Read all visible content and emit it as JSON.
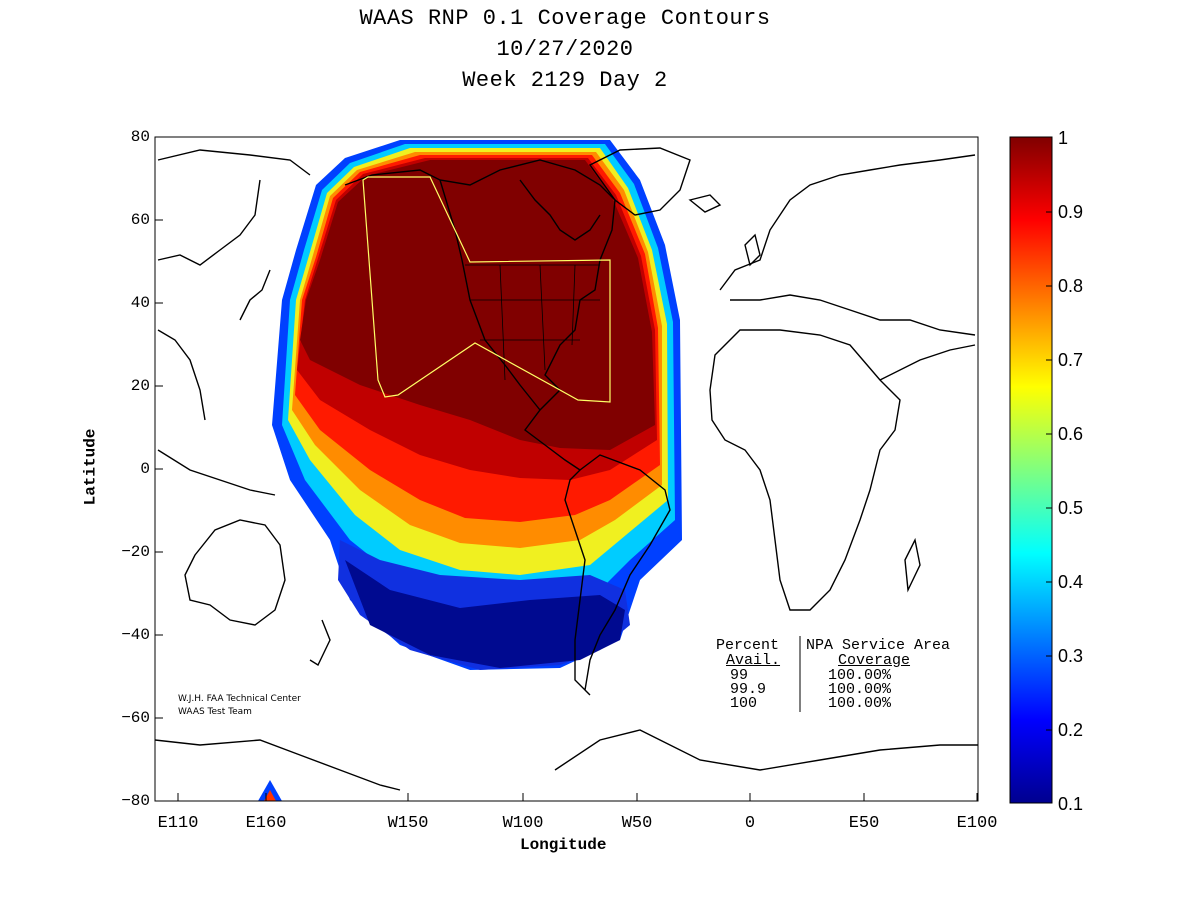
{
  "title": {
    "line1": "WAAS RNP 0.1 Coverage Contours",
    "line2": "10/27/2020",
    "line3": "Week 2129 Day 2"
  },
  "axes": {
    "xlabel": "Longitude",
    "ylabel": "Latitude",
    "x_ticks": [
      "E110",
      "E160",
      "W150",
      "W100",
      "W50",
      "0",
      "E50",
      "E100"
    ],
    "y_ticks": [
      "80",
      "60",
      "40",
      "20",
      "0",
      "−20",
      "−40",
      "−60",
      "−80"
    ]
  },
  "colorbar": {
    "ticks": [
      "1",
      "0.9",
      "0.8",
      "0.7",
      "0.6",
      "0.5",
      "0.4",
      "0.3",
      "0.2",
      "0.1"
    ],
    "colormap": "jet",
    "min": 0.1,
    "max": 1
  },
  "credit": {
    "line1": "W.J.H. FAA Technical Center",
    "line2": "WAAS Test Team"
  },
  "table": {
    "col1_header": "Percent",
    "col1_sub": "Avail.",
    "col2_header": "NPA Service Area",
    "col2_sub": "Coverage",
    "rows": [
      {
        "avail": "99",
        "coverage": "100.00%"
      },
      {
        "avail": "99.9",
        "coverage": "100.00%"
      },
      {
        "avail": "100",
        "coverage": "100.00%"
      }
    ]
  },
  "colors": {
    "dark_red": "#800000",
    "red": "#ff0000",
    "orange": "#ff8000",
    "yellow": "#ffff00",
    "cyan": "#00ffff",
    "blue": "#0000ff",
    "dark_blue": "#000080",
    "service_area_outline": "#ffff66"
  }
}
